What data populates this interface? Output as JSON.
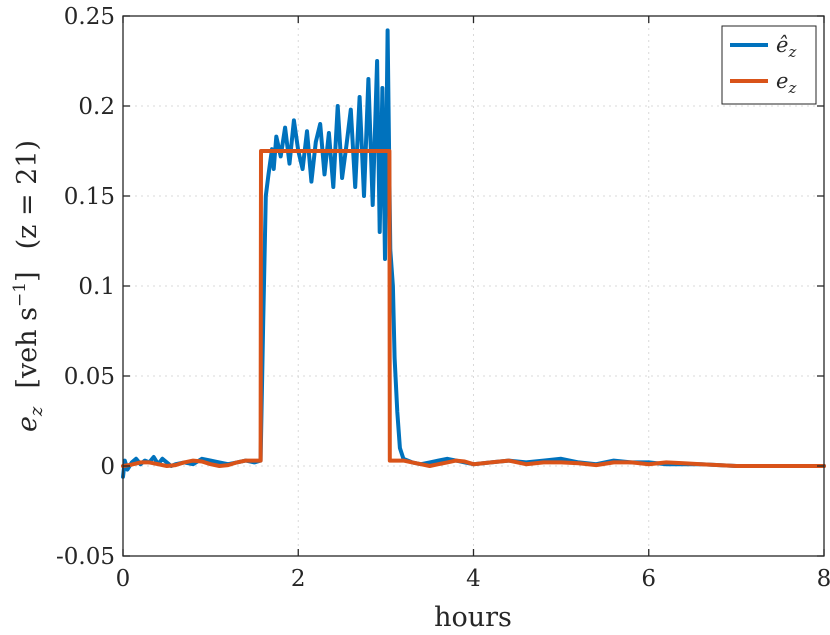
{
  "chart_data": {
    "type": "line",
    "xlabel": "hours",
    "ylabel": "e_z   [veh s^-1]   (z = 21)",
    "ylabel_parts": {
      "sym": "e",
      "sub": "z",
      "unit_open": "[veh s",
      "unit_sup": "−1",
      "unit_close": "]",
      "cond": "(z = 21)"
    },
    "xlim": [
      0,
      8
    ],
    "ylim": [
      -0.05,
      0.25
    ],
    "xticks": [
      0,
      2,
      4,
      6,
      8
    ],
    "xtick_labels": [
      "0",
      "2",
      "4",
      "6",
      "8"
    ],
    "yticks": [
      -0.05,
      0,
      0.05,
      0.1,
      0.15,
      0.2,
      0.25
    ],
    "ytick_labels": [
      "-0.05",
      "0",
      "0.05",
      "0.1",
      "0.15",
      "0.2",
      "0.25"
    ],
    "grid": true,
    "legend_position": "top-right",
    "series": [
      {
        "name": "ê_z",
        "legend_label": {
          "base": "ê",
          "sub": "z"
        },
        "color": "#0072BD",
        "x": [
          0,
          0.02,
          0.05,
          0.1,
          0.15,
          0.2,
          0.25,
          0.3,
          0.35,
          0.4,
          0.45,
          0.5,
          0.55,
          0.6,
          0.7,
          0.8,
          0.9,
          1.0,
          1.1,
          1.2,
          1.3,
          1.4,
          1.5,
          1.57,
          1.6,
          1.63,
          1.66,
          1.7,
          1.72,
          1.75,
          1.8,
          1.85,
          1.9,
          1.95,
          2.0,
          2.05,
          2.1,
          2.15,
          2.2,
          2.25,
          2.3,
          2.35,
          2.4,
          2.45,
          2.5,
          2.55,
          2.6,
          2.65,
          2.7,
          2.75,
          2.8,
          2.85,
          2.9,
          2.93,
          2.96,
          2.99,
          3.02,
          3.05,
          3.08,
          3.1,
          3.13,
          3.16,
          3.2,
          3.3,
          3.4,
          3.5,
          3.6,
          3.7,
          3.8,
          3.9,
          4.0,
          4.2,
          4.4,
          4.6,
          4.8,
          5.0,
          5.2,
          5.4,
          5.6,
          5.8,
          6.0,
          6.2,
          6.4,
          6.6,
          6.8,
          7.0,
          7.5,
          8.0
        ],
        "y": [
          -0.006,
          0.003,
          -0.002,
          0.002,
          0.004,
          0.001,
          0.003,
          0.002,
          0.005,
          0.001,
          0.004,
          0.002,
          0.0,
          0.001,
          0.002,
          0.001,
          0.004,
          0.003,
          0.002,
          0.001,
          0.002,
          0.003,
          0.002,
          0.003,
          0.08,
          0.15,
          0.162,
          0.176,
          0.165,
          0.183,
          0.172,
          0.188,
          0.168,
          0.192,
          0.175,
          0.165,
          0.186,
          0.158,
          0.18,
          0.19,
          0.162,
          0.185,
          0.155,
          0.2,
          0.16,
          0.178,
          0.198,
          0.155,
          0.205,
          0.15,
          0.215,
          0.145,
          0.225,
          0.13,
          0.21,
          0.115,
          0.242,
          0.12,
          0.1,
          0.06,
          0.03,
          0.01,
          0.004,
          0.002,
          0.001,
          0.002,
          0.003,
          0.004,
          0.003,
          0.002,
          0.001,
          0.002,
          0.003,
          0.002,
          0.003,
          0.004,
          0.002,
          0.001,
          0.003,
          0.002,
          0.002,
          0.001,
          0.001,
          0.001,
          0.0005,
          0.0,
          0.0,
          0.0
        ]
      },
      {
        "name": "e_z",
        "legend_label": {
          "base": "e",
          "sub": "z"
        },
        "color": "#D95319",
        "x": [
          0,
          0.1,
          0.2,
          0.3,
          0.4,
          0.5,
          0.6,
          0.7,
          0.8,
          0.9,
          1.0,
          1.1,
          1.2,
          1.3,
          1.4,
          1.5,
          1.57,
          1.575,
          3.04,
          3.045,
          3.2,
          3.3,
          3.4,
          3.5,
          3.6,
          3.7,
          3.8,
          3.9,
          4.0,
          4.2,
          4.4,
          4.6,
          4.8,
          5.0,
          5.2,
          5.4,
          5.6,
          5.8,
          6.0,
          6.2,
          6.4,
          6.6,
          6.8,
          7.0,
          7.5,
          8.0
        ],
        "y": [
          0.0,
          0.0008,
          0.002,
          0.002,
          0.001,
          0.0,
          0.0005,
          0.002,
          0.003,
          0.0025,
          0.001,
          0.0,
          0.0005,
          0.002,
          0.003,
          0.003,
          0.003,
          0.175,
          0.175,
          0.003,
          0.003,
          0.002,
          0.001,
          0.0,
          0.001,
          0.002,
          0.003,
          0.0025,
          0.001,
          0.002,
          0.003,
          0.001,
          0.002,
          0.002,
          0.0015,
          0.0005,
          0.002,
          0.002,
          0.001,
          0.002,
          0.0015,
          0.001,
          0.0005,
          0.0,
          0.0,
          0.0
        ]
      }
    ]
  }
}
